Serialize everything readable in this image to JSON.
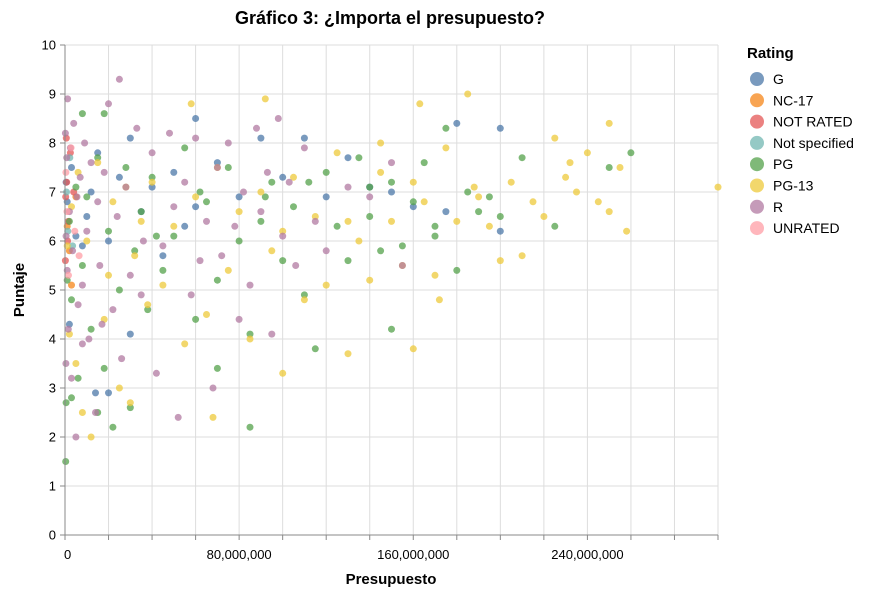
{
  "chart_data": {
    "type": "scatter",
    "title": "Gráfico 3: ¿Importa el presupuesto?",
    "xlabel": "Presupuesto",
    "ylabel": "Puntaje",
    "xlim": [
      0,
      300000000
    ],
    "ylim": [
      0,
      10
    ],
    "x_tick_labels": [
      "0",
      "80,000,000",
      "160,000,000",
      "240,000,000"
    ],
    "x_tick_values": [
      0,
      80000000,
      160000000,
      240000000
    ],
    "x_minor_tick_step": 20000000,
    "y_ticks": [
      0,
      1,
      2,
      3,
      4,
      5,
      6,
      7,
      8,
      9,
      10
    ],
    "grid": true,
    "legend": {
      "title": "Rating",
      "position": "right",
      "entries": [
        {
          "name": "G",
          "color": "#4c78a8"
        },
        {
          "name": "NC-17",
          "color": "#f58518"
        },
        {
          "name": "NOT RATED",
          "color": "#e45756"
        },
        {
          "name": "Not specified",
          "color": "#72b7b2"
        },
        {
          "name": "PG",
          "color": "#54a24b"
        },
        {
          "name": "PG-13",
          "color": "#eeca3b"
        },
        {
          "name": "R",
          "color": "#b279a2"
        },
        {
          "name": "UNRATED",
          "color": "#ff9da6"
        }
      ]
    },
    "series": [
      {
        "name": "G",
        "points": [
          [
            500000,
            7.2
          ],
          [
            1000000,
            6.8
          ],
          [
            3000000,
            7.5
          ],
          [
            5000000,
            6.1
          ],
          [
            8000000,
            5.9
          ],
          [
            10000000,
            6.5
          ],
          [
            12000000,
            7.0
          ],
          [
            15000000,
            7.8
          ],
          [
            20000000,
            6.0
          ],
          [
            25000000,
            7.3
          ],
          [
            30000000,
            8.1
          ],
          [
            35000000,
            6.6
          ],
          [
            40000000,
            7.1
          ],
          [
            45000000,
            5.7
          ],
          [
            50000000,
            7.4
          ],
          [
            55000000,
            6.3
          ],
          [
            60000000,
            6.7
          ],
          [
            70000000,
            7.6
          ],
          [
            80000000,
            6.9
          ],
          [
            90000000,
            8.1
          ],
          [
            100000000,
            7.3
          ],
          [
            110000000,
            8.1
          ],
          [
            120000000,
            6.9
          ],
          [
            130000000,
            7.7
          ],
          [
            140000000,
            7.1
          ],
          [
            150000000,
            7.0
          ],
          [
            160000000,
            6.7
          ],
          [
            175000000,
            6.6
          ],
          [
            180000000,
            8.4
          ],
          [
            200000000,
            6.2
          ],
          [
            200000000,
            8.3
          ],
          [
            20000000,
            2.9
          ],
          [
            14000000,
            2.9
          ],
          [
            30000000,
            4.1
          ],
          [
            60000000,
            8.5
          ],
          [
            2000000,
            4.3
          ]
        ]
      },
      {
        "name": "NC-17",
        "points": [
          [
            1000000,
            6.3
          ],
          [
            2000000,
            5.8
          ],
          [
            5000000,
            6.9
          ],
          [
            3000000,
            5.1
          ]
        ]
      },
      {
        "name": "NOT RATED",
        "points": [
          [
            300000,
            6.9
          ],
          [
            800000,
            7.2
          ],
          [
            1500000,
            6.4
          ],
          [
            2500000,
            7.8
          ],
          [
            200000,
            5.6
          ],
          [
            4000000,
            7.0
          ],
          [
            600000,
            8.1
          ],
          [
            1200000,
            6.0
          ]
        ]
      },
      {
        "name": "Not specified",
        "points": [
          [
            700000,
            7.0
          ],
          [
            1300000,
            6.2
          ],
          [
            2200000,
            7.7
          ],
          [
            3500000,
            5.9
          ]
        ]
      },
      {
        "name": "PG",
        "points": [
          [
            300000,
            1.5
          ],
          [
            500000,
            2.7
          ],
          [
            1000000,
            5.2
          ],
          [
            2000000,
            6.4
          ],
          [
            3000000,
            4.8
          ],
          [
            5000000,
            7.1
          ],
          [
            6000000,
            3.2
          ],
          [
            8000000,
            5.5
          ],
          [
            10000000,
            6.9
          ],
          [
            12000000,
            4.2
          ],
          [
            15000000,
            7.7
          ],
          [
            18000000,
            3.4
          ],
          [
            20000000,
            6.2
          ],
          [
            22000000,
            2.2
          ],
          [
            25000000,
            5.0
          ],
          [
            28000000,
            7.5
          ],
          [
            30000000,
            2.6
          ],
          [
            32000000,
            5.8
          ],
          [
            35000000,
            6.6
          ],
          [
            38000000,
            4.6
          ],
          [
            40000000,
            7.3
          ],
          [
            45000000,
            5.4
          ],
          [
            50000000,
            6.1
          ],
          [
            55000000,
            7.9
          ],
          [
            60000000,
            4.4
          ],
          [
            65000000,
            6.8
          ],
          [
            70000000,
            5.2
          ],
          [
            75000000,
            7.5
          ],
          [
            80000000,
            6.0
          ],
          [
            85000000,
            4.1
          ],
          [
            85000000,
            2.2
          ],
          [
            90000000,
            6.4
          ],
          [
            95000000,
            7.2
          ],
          [
            100000000,
            5.6
          ],
          [
            105000000,
            6.7
          ],
          [
            110000000,
            4.9
          ],
          [
            115000000,
            3.8
          ],
          [
            120000000,
            7.4
          ],
          [
            125000000,
            6.3
          ],
          [
            130000000,
            5.6
          ],
          [
            135000000,
            7.7
          ],
          [
            140000000,
            6.5
          ],
          [
            145000000,
            5.8
          ],
          [
            150000000,
            4.2
          ],
          [
            150000000,
            7.2
          ],
          [
            155000000,
            5.9
          ],
          [
            160000000,
            6.8
          ],
          [
            165000000,
            7.6
          ],
          [
            170000000,
            6.3
          ],
          [
            175000000,
            8.3
          ],
          [
            180000000,
            5.4
          ],
          [
            185000000,
            7.0
          ],
          [
            190000000,
            6.6
          ],
          [
            195000000,
            6.9
          ],
          [
            200000000,
            6.5
          ],
          [
            210000000,
            7.7
          ],
          [
            225000000,
            6.3
          ],
          [
            250000000,
            7.5
          ],
          [
            260000000,
            7.8
          ],
          [
            170000000,
            6.1
          ],
          [
            140000000,
            7.1
          ],
          [
            70000000,
            3.4
          ],
          [
            8000000,
            8.6
          ],
          [
            18000000,
            8.6
          ],
          [
            3000000,
            2.8
          ],
          [
            15000000,
            2.5
          ],
          [
            42000000,
            6.1
          ],
          [
            62000000,
            7.0
          ],
          [
            92000000,
            6.9
          ],
          [
            112000000,
            7.2
          ]
        ]
      },
      {
        "name": "PG-13",
        "points": [
          [
            1000000,
            5.9
          ],
          [
            2000000,
            4.1
          ],
          [
            3000000,
            6.7
          ],
          [
            5000000,
            3.5
          ],
          [
            6000000,
            7.4
          ],
          [
            8000000,
            2.5
          ],
          [
            10000000,
            6.0
          ],
          [
            12000000,
            2.0
          ],
          [
            15000000,
            7.6
          ],
          [
            18000000,
            4.4
          ],
          [
            20000000,
            5.3
          ],
          [
            22000000,
            6.8
          ],
          [
            25000000,
            3.0
          ],
          [
            28000000,
            7.1
          ],
          [
            30000000,
            2.7
          ],
          [
            32000000,
            5.7
          ],
          [
            35000000,
            6.4
          ],
          [
            38000000,
            4.7
          ],
          [
            40000000,
            7.2
          ],
          [
            45000000,
            5.1
          ],
          [
            50000000,
            6.3
          ],
          [
            55000000,
            3.9
          ],
          [
            58000000,
            8.8
          ],
          [
            60000000,
            6.9
          ],
          [
            65000000,
            4.5
          ],
          [
            68000000,
            2.4
          ],
          [
            70000000,
            7.5
          ],
          [
            75000000,
            5.4
          ],
          [
            80000000,
            6.6
          ],
          [
            85000000,
            4.0
          ],
          [
            90000000,
            7.0
          ],
          [
            92000000,
            8.9
          ],
          [
            95000000,
            5.8
          ],
          [
            100000000,
            6.2
          ],
          [
            100000000,
            3.3
          ],
          [
            105000000,
            7.3
          ],
          [
            110000000,
            4.8
          ],
          [
            115000000,
            6.5
          ],
          [
            120000000,
            5.1
          ],
          [
            125000000,
            7.8
          ],
          [
            130000000,
            3.7
          ],
          [
            135000000,
            6.0
          ],
          [
            140000000,
            5.2
          ],
          [
            145000000,
            7.4
          ],
          [
            150000000,
            6.4
          ],
          [
            155000000,
            5.5
          ],
          [
            160000000,
            7.2
          ],
          [
            160000000,
            3.8
          ],
          [
            163000000,
            8.8
          ],
          [
            165000000,
            6.8
          ],
          [
            170000000,
            5.3
          ],
          [
            172000000,
            4.8
          ],
          [
            175000000,
            7.9
          ],
          [
            180000000,
            6.4
          ],
          [
            185000000,
            9.0
          ],
          [
            190000000,
            6.9
          ],
          [
            195000000,
            6.3
          ],
          [
            200000000,
            5.6
          ],
          [
            205000000,
            7.2
          ],
          [
            210000000,
            5.7
          ],
          [
            215000000,
            6.8
          ],
          [
            220000000,
            6.5
          ],
          [
            225000000,
            8.1
          ],
          [
            230000000,
            7.3
          ],
          [
            235000000,
            7.0
          ],
          [
            240000000,
            7.8
          ],
          [
            245000000,
            6.8
          ],
          [
            250000000,
            6.6
          ],
          [
            250000000,
            8.4
          ],
          [
            255000000,
            7.5
          ],
          [
            258000000,
            6.2
          ],
          [
            300000000,
            7.1
          ],
          [
            130000000,
            6.4
          ],
          [
            145000000,
            8.0
          ],
          [
            188000000,
            7.1
          ],
          [
            232000000,
            7.6
          ]
        ]
      },
      {
        "name": "R",
        "points": [
          [
            200000,
            8.2
          ],
          [
            400000,
            3.5
          ],
          [
            500000,
            6.1
          ],
          [
            800000,
            7.7
          ],
          [
            1000000,
            5.4
          ],
          [
            1200000,
            8.9
          ],
          [
            1500000,
            4.2
          ],
          [
            2000000,
            6.6
          ],
          [
            2500000,
            7.9
          ],
          [
            3000000,
            3.2
          ],
          [
            3500000,
            5.8
          ],
          [
            4000000,
            8.4
          ],
          [
            5000000,
            2.0
          ],
          [
            5500000,
            6.9
          ],
          [
            6000000,
            4.7
          ],
          [
            7000000,
            7.3
          ],
          [
            8000000,
            5.1
          ],
          [
            9000000,
            8.0
          ],
          [
            10000000,
            6.2
          ],
          [
            11000000,
            4.0
          ],
          [
            12000000,
            7.6
          ],
          [
            14000000,
            2.5
          ],
          [
            15000000,
            6.8
          ],
          [
            16000000,
            5.5
          ],
          [
            18000000,
            7.4
          ],
          [
            20000000,
            8.8
          ],
          [
            22000000,
            4.6
          ],
          [
            24000000,
            6.5
          ],
          [
            25000000,
            9.3
          ],
          [
            26000000,
            3.6
          ],
          [
            28000000,
            7.1
          ],
          [
            30000000,
            5.3
          ],
          [
            33000000,
            8.3
          ],
          [
            36000000,
            6.0
          ],
          [
            40000000,
            7.8
          ],
          [
            42000000,
            3.3
          ],
          [
            45000000,
            5.9
          ],
          [
            48000000,
            8.2
          ],
          [
            50000000,
            6.7
          ],
          [
            52000000,
            2.4
          ],
          [
            55000000,
            7.2
          ],
          [
            58000000,
            4.9
          ],
          [
            60000000,
            8.1
          ],
          [
            62000000,
            5.6
          ],
          [
            65000000,
            6.4
          ],
          [
            68000000,
            3.0
          ],
          [
            70000000,
            7.5
          ],
          [
            72000000,
            5.7
          ],
          [
            75000000,
            8.0
          ],
          [
            78000000,
            6.3
          ],
          [
            80000000,
            4.4
          ],
          [
            82000000,
            7.0
          ],
          [
            85000000,
            5.1
          ],
          [
            88000000,
            8.3
          ],
          [
            90000000,
            6.6
          ],
          [
            93000000,
            7.4
          ],
          [
            95000000,
            4.1
          ],
          [
            98000000,
            8.5
          ],
          [
            100000000,
            6.1
          ],
          [
            103000000,
            7.2
          ],
          [
            106000000,
            5.5
          ],
          [
            110000000,
            7.9
          ],
          [
            115000000,
            6.4
          ],
          [
            120000000,
            5.8
          ],
          [
            130000000,
            7.1
          ],
          [
            140000000,
            6.9
          ],
          [
            150000000,
            7.6
          ],
          [
            155000000,
            5.5
          ],
          [
            8000000,
            3.9
          ],
          [
            17000000,
            4.3
          ],
          [
            35000000,
            4.9
          ]
        ]
      },
      {
        "name": "UNRATED",
        "points": [
          [
            400000,
            7.4
          ],
          [
            900000,
            6.6
          ],
          [
            1600000,
            5.3
          ],
          [
            2800000,
            7.9
          ],
          [
            4500000,
            6.2
          ],
          [
            6500000,
            5.7
          ]
        ]
      }
    ]
  }
}
